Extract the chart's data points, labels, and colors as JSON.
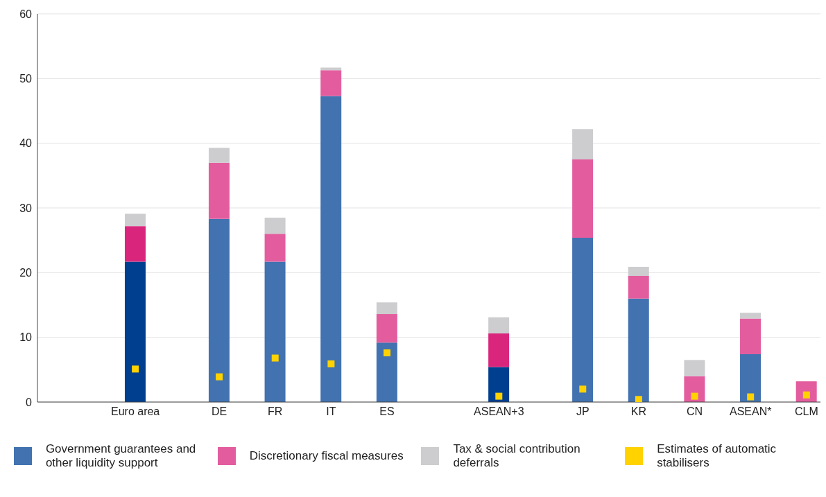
{
  "chart_data": {
    "type": "bar",
    "stacked": true,
    "categories": [
      null,
      null,
      null,
      "Euro area",
      null,
      null,
      "DE",
      null,
      "FR",
      null,
      "IT",
      null,
      "ES",
      null,
      null,
      null,
      "ASEAN+3",
      null,
      null,
      "JP",
      null,
      "KR",
      null,
      "CN",
      null,
      "ASEAN*",
      null,
      "CLM"
    ],
    "series": [
      {
        "name": "Government guarantees and other liquidity support",
        "color": "#4272b0",
        "colors": [
          null,
          null,
          null,
          "#003f8f",
          null,
          null,
          "#4272b0",
          null,
          "#4272b0",
          null,
          "#4272b0",
          null,
          "#4272b0",
          null,
          null,
          null,
          "#003f8f",
          null,
          null,
          "#4272b0",
          null,
          "#4272b0",
          null,
          "#4272b0",
          null,
          "#4272b0",
          null,
          "#4272b0"
        ],
        "values": [
          null,
          null,
          null,
          21.7,
          null,
          null,
          28.3,
          null,
          21.7,
          null,
          47.3,
          null,
          9.2,
          null,
          null,
          null,
          5.4,
          null,
          null,
          25.4,
          null,
          16.0,
          null,
          0,
          null,
          7.4,
          null,
          0
        ]
      },
      {
        "name": "Discretionary fiscal measures",
        "color": "#e35d9e",
        "colors": [
          null,
          null,
          null,
          "#d9267c",
          null,
          null,
          "#e35d9e",
          null,
          "#e35d9e",
          null,
          "#e35d9e",
          null,
          "#e35d9e",
          null,
          null,
          null,
          "#d9267c",
          null,
          null,
          "#e35d9e",
          null,
          "#e35d9e",
          null,
          "#e35d9e",
          null,
          "#e35d9e",
          null,
          "#e35d9e"
        ],
        "values": [
          null,
          null,
          null,
          5.5,
          null,
          null,
          8.7,
          null,
          4.3,
          null,
          4.0,
          null,
          4.4,
          null,
          null,
          null,
          5.2,
          null,
          null,
          12.1,
          null,
          3.5,
          null,
          4.0,
          null,
          5.5,
          null,
          3.2
        ]
      },
      {
        "name": "Tax & social contribution deferrals",
        "color": "#cdcdcf",
        "values": [
          null,
          null,
          null,
          1.9,
          null,
          null,
          2.3,
          null,
          2.5,
          null,
          0.4,
          null,
          1.8,
          null,
          null,
          null,
          2.5,
          null,
          null,
          4.7,
          null,
          1.4,
          null,
          2.5,
          null,
          0.9,
          null,
          0
        ]
      },
      {
        "name": "Estimates of automatic stabilisers",
        "type": "scatter",
        "marker": "square",
        "color": "#ffd200",
        "values": [
          null,
          null,
          null,
          5.1,
          null,
          null,
          3.9,
          null,
          6.8,
          null,
          5.9,
          null,
          7.6,
          null,
          null,
          null,
          0.9,
          null,
          null,
          2.0,
          null,
          0.4,
          null,
          0.9,
          null,
          0.8,
          null,
          1.1
        ]
      }
    ],
    "ylim": [
      0,
      60
    ],
    "yticks": [
      0,
      10,
      20,
      30,
      40,
      50,
      60
    ],
    "grid": "y",
    "legend": "bottom"
  }
}
